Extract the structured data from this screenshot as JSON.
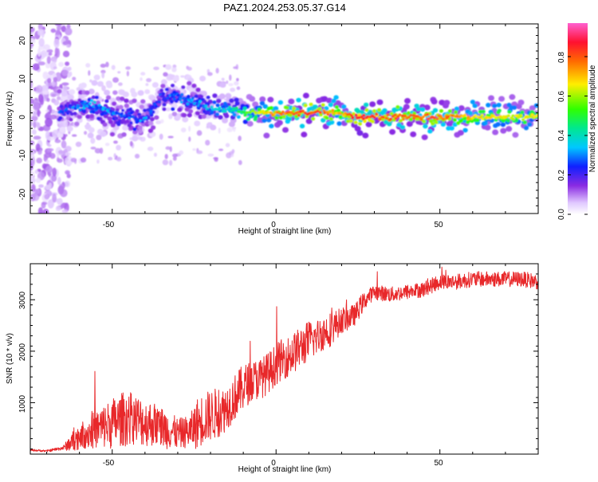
{
  "title": "PAZ1.2024.253.05.37.G14",
  "chart_data": [
    {
      "type": "heatmap",
      "xlabel": "Height of straight line (km)",
      "ylabel": "Frequency (Hz)",
      "xlim": [
        -75,
        80
      ],
      "ylim": [
        -25,
        24
      ],
      "xticks": [
        "-50",
        "0",
        "50"
      ],
      "yticks": [
        "-20",
        "-10",
        "0",
        "10",
        "20"
      ],
      "ridge": {
        "x": [
          -66,
          -60,
          -55,
          -50,
          -45,
          -40,
          -35,
          -30,
          -25,
          -20,
          -15,
          -10,
          -5,
          0,
          5,
          10,
          15,
          20,
          25,
          30,
          40,
          50,
          60,
          70,
          80
        ],
        "freq": [
          1,
          3,
          3,
          1,
          0,
          -1,
          5,
          5,
          4,
          2,
          2,
          1,
          1,
          1,
          1,
          1,
          1,
          1,
          0,
          0,
          0,
          0,
          0,
          0,
          0
        ],
        "peak": [
          0.3,
          0.35,
          0.4,
          0.35,
          0.35,
          0.35,
          0.3,
          0.35,
          0.35,
          0.4,
          0.4,
          0.55,
          0.7,
          0.8,
          0.85,
          0.9,
          0.85,
          0.75,
          0.95,
          0.9,
          0.85,
          0.85,
          0.75,
          0.7,
          0.7
        ]
      },
      "colorbar": {
        "label": "Normalized spectral amplitude",
        "range": [
          0,
          0.95
        ],
        "ticks": [
          "0.0",
          "0.2",
          "0.4",
          "0.6",
          "0.8"
        ]
      }
    },
    {
      "type": "line",
      "xlabel": "Height of straight line (km)",
      "ylabel": "SNR (10 * v/v)",
      "xlim": [
        -75,
        80
      ],
      "ylim": [
        0,
        3700
      ],
      "xticks": [
        "-50",
        "0",
        "50"
      ],
      "yticks": [
        "1000",
        "2000",
        "3000"
      ],
      "color": "#e8282a",
      "series": [
        {
          "x": [
            -75,
            -70,
            -65,
            -62,
            -60,
            -58,
            -56,
            -54,
            -52,
            -50,
            -48,
            -46,
            -44,
            -42,
            -40,
            -38,
            -36,
            -34,
            -32,
            -30,
            -28,
            -26,
            -24,
            -22,
            -20,
            -18,
            -16,
            -14,
            -12,
            -10,
            -8,
            -6,
            -4,
            -2,
            0,
            2,
            4,
            6,
            8,
            10,
            12,
            14,
            16,
            18,
            20,
            22,
            24,
            26,
            28,
            30,
            35,
            40,
            45,
            50,
            55,
            60,
            65,
            70,
            75,
            80
          ],
          "y": [
            80,
            60,
            120,
            250,
            350,
            400,
            450,
            500,
            550,
            600,
            650,
            700,
            700,
            650,
            600,
            600,
            550,
            500,
            450,
            400,
            420,
            450,
            600,
            700,
            750,
            800,
            850,
            1000,
            1150,
            1300,
            1400,
            1450,
            1500,
            1600,
            1750,
            1850,
            1900,
            2000,
            2100,
            2200,
            2250,
            2350,
            2400,
            2500,
            2600,
            2650,
            2700,
            2900,
            3050,
            3150,
            3100,
            3150,
            3200,
            3350,
            3350,
            3400,
            3400,
            3400,
            3400,
            3350
          ],
          "amp": [
            20,
            20,
            40,
            200,
            250,
            300,
            350,
            400,
            450,
            500,
            500,
            550,
            500,
            500,
            450,
            450,
            400,
            400,
            350,
            300,
            300,
            350,
            500,
            500,
            500,
            500,
            450,
            450,
            450,
            450,
            400,
            400,
            400,
            400,
            400,
            400,
            400,
            400,
            400,
            400,
            350,
            350,
            350,
            300,
            250,
            250,
            200,
            200,
            150,
            150,
            150,
            150,
            150,
            150,
            150,
            150,
            150,
            150,
            150,
            150
          ]
        }
      ]
    }
  ]
}
